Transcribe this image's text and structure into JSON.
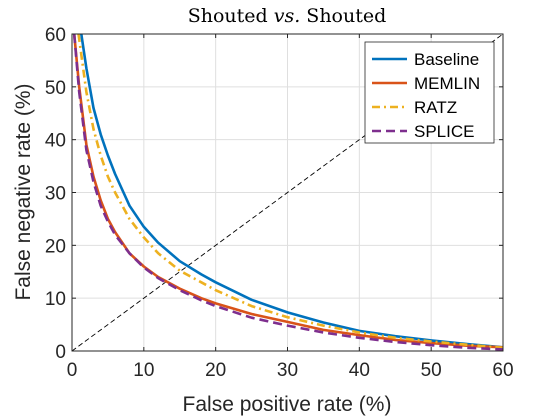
{
  "chart_data": {
    "type": "line",
    "title": {
      "pre": "Shouted ",
      "em": "vs.",
      "post": " Shouted"
    },
    "xlabel": "False positive rate (%)",
    "ylabel": "False negative rate (%)",
    "xlim": [
      0,
      60
    ],
    "ylim": [
      0,
      60
    ],
    "xticks": [
      0,
      10,
      20,
      30,
      40,
      50,
      60
    ],
    "yticks": [
      0,
      10,
      20,
      30,
      40,
      50,
      60
    ],
    "grid": true,
    "legend_position": "top-right",
    "colors": {
      "axis": "#262626",
      "grid": "#dfdfdf",
      "diagonal": "#000000"
    },
    "series": [
      {
        "name": "Baseline",
        "color": "#0072BD",
        "dash": "solid",
        "x": [
          1.3,
          2,
          3,
          4,
          5,
          6,
          8,
          10,
          12,
          15,
          18,
          20,
          25,
          30,
          35,
          40,
          45,
          50,
          55,
          60
        ],
        "y": [
          60,
          53.5,
          46,
          41,
          37,
          33.5,
          27.5,
          23.5,
          20.5,
          17,
          14.5,
          13,
          9.7,
          7.3,
          5.4,
          3.8,
          2.8,
          2,
          1.3,
          0.7
        ]
      },
      {
        "name": "MEMLIN",
        "color": "#D95319",
        "dash": "solid",
        "x": [
          0.3,
          1,
          2,
          3,
          4,
          5,
          6,
          8,
          10,
          12,
          15,
          18,
          20,
          25,
          30,
          35,
          40,
          45,
          50,
          55,
          60
        ],
        "y": [
          60,
          50,
          39,
          33,
          28.5,
          25,
          22.5,
          18.5,
          16,
          14,
          11.8,
          10,
          9,
          7,
          5.5,
          4,
          3,
          2.1,
          1.5,
          1,
          0.7
        ]
      },
      {
        "name": "RATZ",
        "color": "#EDB120",
        "dash": "dashdot",
        "x": [
          0.9,
          2,
          3,
          4,
          5,
          6,
          8,
          10,
          12,
          15,
          18,
          20,
          25,
          30,
          35,
          40,
          45,
          50,
          55,
          60
        ],
        "y": [
          60,
          49,
          42,
          37,
          33,
          30,
          25,
          21.5,
          18.5,
          15.2,
          13,
          11.5,
          8.5,
          6.4,
          4.8,
          3.5,
          2.5,
          1.8,
          1.2,
          0.6
        ]
      },
      {
        "name": "SPLICE",
        "color": "#7E2F8E",
        "dash": "dash",
        "x": [
          0.3,
          1,
          2,
          3,
          4,
          5,
          6,
          8,
          10,
          12,
          15,
          18,
          20,
          25,
          30,
          35,
          40,
          45,
          50,
          55,
          60
        ],
        "y": [
          60,
          49,
          38,
          32,
          27.5,
          24.5,
          22,
          18.5,
          15.8,
          13.8,
          11.5,
          9.6,
          8.5,
          6.3,
          4.8,
          3.5,
          2.5,
          1.7,
          1.1,
          0.6,
          0.3
        ]
      }
    ]
  }
}
